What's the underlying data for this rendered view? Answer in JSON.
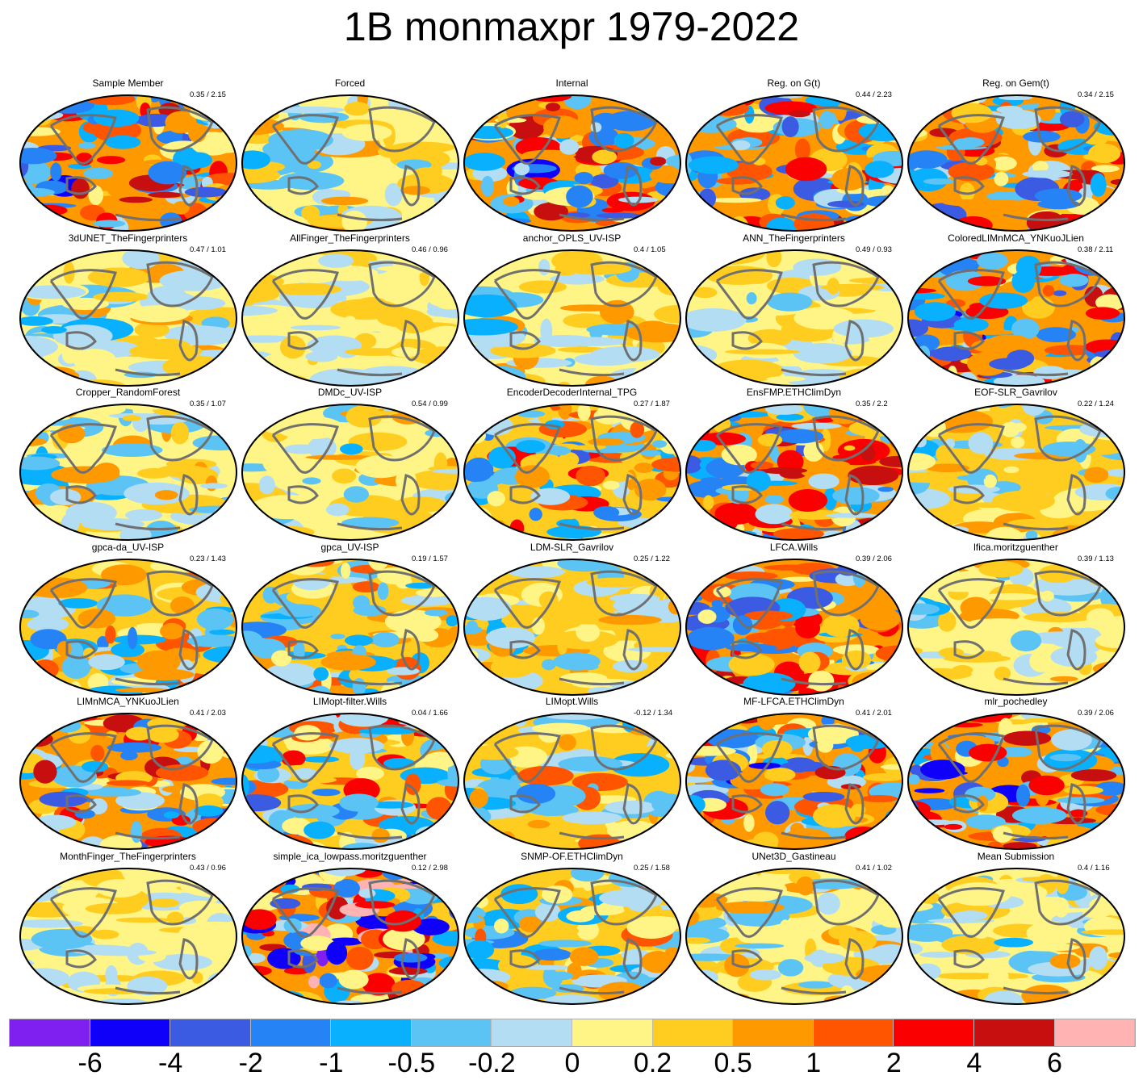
{
  "title": "1B monmaxpr 1979-2022",
  "panels": [
    {
      "name": "Sample Member",
      "stats": "0.35 / 2.15"
    },
    {
      "name": "Forced",
      "stats": ""
    },
    {
      "name": "Internal",
      "stats": ""
    },
    {
      "name": "Reg. on G(t)",
      "stats": "0.44 / 2.23"
    },
    {
      "name": "Reg. on Gem(t)",
      "stats": "0.34 / 2.15"
    },
    {
      "name": "3dUNET_TheFingerprinters",
      "stats": "0.47 / 1.01"
    },
    {
      "name": "AllFinger_TheFingerprinters",
      "stats": "0.46 / 0.96"
    },
    {
      "name": "anchor_OPLS_UV-ISP",
      "stats": "0.4 / 1.05"
    },
    {
      "name": "ANN_TheFingerprinters",
      "stats": "0.49 / 0.93"
    },
    {
      "name": "ColoredLIMnMCA_YNKuoJLien",
      "stats": "0.38 / 2.11"
    },
    {
      "name": "Cropper_RandomForest",
      "stats": "0.35 / 1.07"
    },
    {
      "name": "DMDc_UV-ISP",
      "stats": "0.54 / 0.99"
    },
    {
      "name": "EncoderDecoderInternal_TPG",
      "stats": "0.27 / 1.87"
    },
    {
      "name": "EnsFMP.ETHClimDyn",
      "stats": "0.35 / 2.2"
    },
    {
      "name": "EOF-SLR_Gavrilov",
      "stats": "0.22 / 1.24"
    },
    {
      "name": "gpca-da_UV-ISP",
      "stats": "0.23 / 1.43"
    },
    {
      "name": "gpca_UV-ISP",
      "stats": "0.19 / 1.57"
    },
    {
      "name": "LDM-SLR_Gavrilov",
      "stats": "0.25 / 1.22"
    },
    {
      "name": "LFCA.Wills",
      "stats": "0.39 / 2.06"
    },
    {
      "name": "lfica.moritzguenther",
      "stats": "0.39 / 1.13"
    },
    {
      "name": "LIMnMCA_YNKuoJLien",
      "stats": "0.41 / 2.03"
    },
    {
      "name": "LIMopt-filter.Wills",
      "stats": "0.04 / 1.66"
    },
    {
      "name": "LIMopt.Wills",
      "stats": "-0.12 / 1.34"
    },
    {
      "name": "MF-LFCA.ETHClimDyn",
      "stats": "0.41 / 2.01"
    },
    {
      "name": "mlr_pochedley",
      "stats": "0.39 / 2.06"
    },
    {
      "name": "MonthFinger_TheFingerprinters",
      "stats": "0.43 / 0.96"
    },
    {
      "name": "simple_ica_lowpass.moritzguenther",
      "stats": "0.12 / 2.98"
    },
    {
      "name": "SNMP-OF.ETHClimDyn",
      "stats": "0.25 / 1.58"
    },
    {
      "name": "UNet3D_Gastineau",
      "stats": "0.41 / 1.02"
    },
    {
      "name": "Mean Submission",
      "stats": "0.4 / 1.16"
    }
  ],
  "colorbar": {
    "colors": [
      "#7f1ff0",
      "#0f00fa",
      "#3b5be2",
      "#2683f5",
      "#08b0fe",
      "#5bc4f5",
      "#b3ddf3",
      "#fff586",
      "#ffcd1f",
      "#ff9900",
      "#ff5500",
      "#fa0000",
      "#c80f0f",
      "#ffb3b3"
    ],
    "labels": [
      "-6",
      "-4",
      "-2",
      "-1",
      "-0.5",
      "-0.2",
      "0",
      "0.2",
      "0.5",
      "1",
      "2",
      "4",
      "6"
    ]
  }
}
